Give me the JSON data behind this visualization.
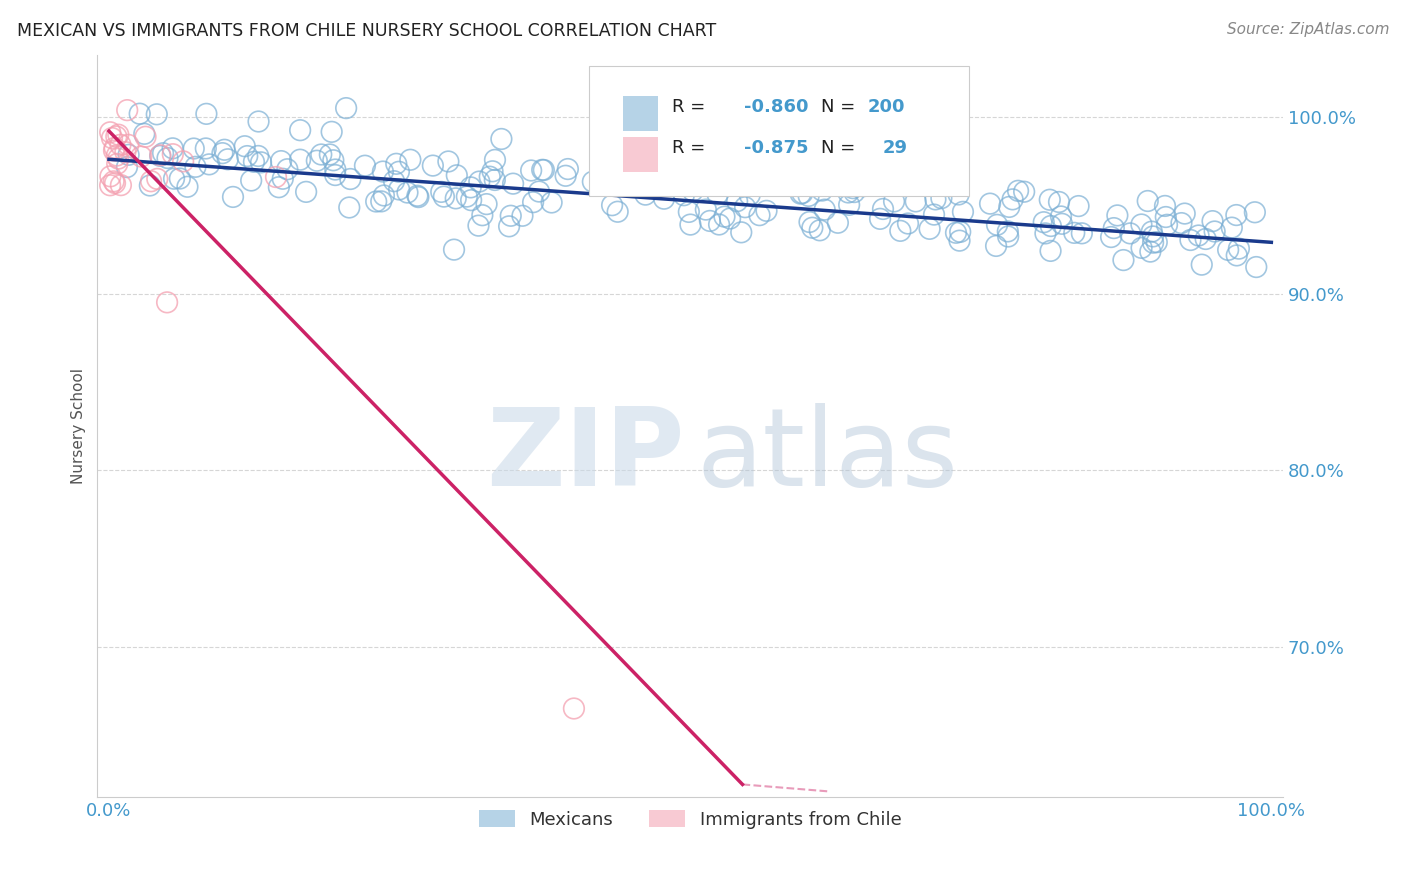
{
  "title": "MEXICAN VS IMMIGRANTS FROM CHILE NURSERY SCHOOL CORRELATION CHART",
  "source": "Source: ZipAtlas.com",
  "ylabel": "Nursery School",
  "ytick_labels": [
    "100.0%",
    "90.0%",
    "80.0%",
    "70.0%"
  ],
  "ytick_values": [
    1.0,
    0.9,
    0.8,
    0.7
  ],
  "legend_blue_label": "Mexicans",
  "legend_pink_label": "Immigrants from Chile",
  "blue_color": "#7BAFD4",
  "pink_color": "#F4A0B0",
  "blue_line_color": "#1A3A8C",
  "pink_line_color": "#CC2266",
  "title_color": "#222222",
  "axis_color": "#4499CC",
  "grid_color": "#CCCCCC",
  "background_color": "#FFFFFF",
  "xlim": [
    -0.01,
    1.01
  ],
  "ylim": [
    0.615,
    1.035
  ]
}
